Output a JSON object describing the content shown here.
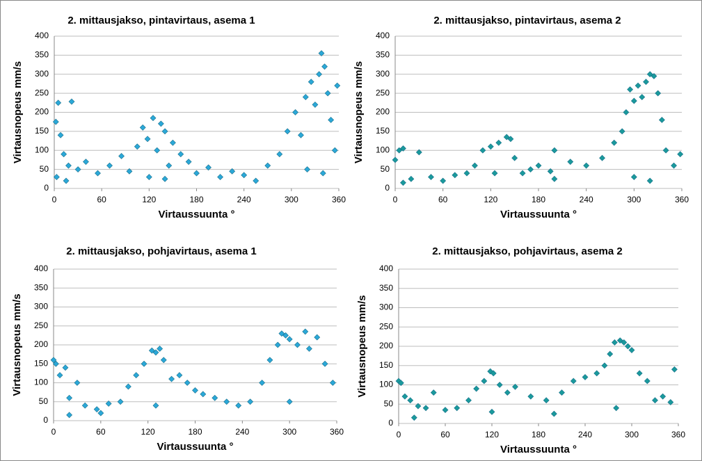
{
  "chart_data": [
    {
      "type": "scatter",
      "title": "2. mittausjakso, pintavirtaus, asema 1",
      "x_label": "Virtaussuunta °",
      "y_label": "Virtausnopeus mm/s",
      "color": "#2ba8d8",
      "x": [
        2,
        5,
        8,
        12,
        18,
        22,
        30,
        40,
        55,
        70,
        85,
        95,
        105,
        112,
        118,
        125,
        130,
        135,
        140,
        145,
        150,
        160,
        170,
        180,
        195,
        210,
        225,
        240,
        255,
        270,
        285,
        295,
        305,
        312,
        318,
        325,
        330,
        335,
        338,
        342,
        346,
        350,
        355,
        358,
        3,
        15,
        120,
        140,
        320,
        340
      ],
      "values": [
        175,
        225,
        140,
        90,
        60,
        228,
        50,
        70,
        40,
        60,
        85,
        45,
        110,
        160,
        130,
        185,
        100,
        170,
        150,
        60,
        120,
        90,
        70,
        40,
        55,
        30,
        45,
        35,
        20,
        60,
        90,
        150,
        200,
        140,
        240,
        280,
        220,
        300,
        355,
        320,
        250,
        180,
        100,
        270,
        30,
        20,
        30,
        25,
        50,
        40
      ],
      "xlim": [
        0,
        360
      ],
      "ylim": [
        0,
        400
      ],
      "xticks": [
        0,
        60,
        120,
        180,
        240,
        300,
        360
      ],
      "yticks": [
        0,
        50,
        100,
        150,
        200,
        250,
        300,
        350,
        400
      ],
      "grid": true
    },
    {
      "type": "scatter",
      "title": "2. mittausjakso, pintavirtaus, asema 2",
      "x_label": "Virtaussuunta °",
      "y_label": "Virtausnopeus mm/s",
      "color": "#1a9a9c",
      "x": [
        0,
        5,
        10,
        20,
        30,
        45,
        60,
        75,
        90,
        100,
        110,
        120,
        130,
        140,
        145,
        150,
        160,
        170,
        180,
        195,
        200,
        220,
        240,
        260,
        275,
        285,
        290,
        295,
        300,
        305,
        310,
        315,
        320,
        325,
        330,
        335,
        340,
        350,
        358,
        125,
        300,
        320,
        10,
        200
      ],
      "values": [
        75,
        100,
        105,
        25,
        95,
        30,
        20,
        35,
        40,
        60,
        100,
        110,
        120,
        135,
        130,
        80,
        40,
        50,
        60,
        45,
        100,
        70,
        60,
        80,
        120,
        150,
        200,
        260,
        230,
        270,
        240,
        280,
        300,
        295,
        250,
        180,
        100,
        60,
        90,
        40,
        30,
        20,
        15,
        25
      ],
      "xlim": [
        0,
        360
      ],
      "ylim": [
        0,
        400
      ],
      "xticks": [
        0,
        60,
        120,
        180,
        240,
        300,
        360
      ],
      "yticks": [
        0,
        50,
        100,
        150,
        200,
        250,
        300,
        350,
        400
      ],
      "grid": true
    },
    {
      "type": "scatter",
      "title": "2. mittausjakso, pohjavirtaus, asema 1",
      "x_label": "Virtaussuunta °",
      "y_label": "Virtausnopeus mm/s",
      "color": "#2ba8d8",
      "x": [
        0,
        3,
        8,
        15,
        20,
        30,
        40,
        55,
        70,
        85,
        95,
        105,
        115,
        125,
        130,
        135,
        140,
        150,
        160,
        170,
        180,
        190,
        205,
        220,
        235,
        250,
        265,
        275,
        285,
        290,
        295,
        300,
        310,
        320,
        325,
        335,
        345,
        355,
        130,
        300,
        60,
        20
      ],
      "values": [
        160,
        150,
        120,
        140,
        60,
        100,
        40,
        30,
        45,
        50,
        90,
        120,
        150,
        185,
        180,
        190,
        160,
        110,
        120,
        100,
        80,
        70,
        60,
        50,
        40,
        50,
        100,
        160,
        200,
        230,
        225,
        215,
        200,
        235,
        190,
        220,
        150,
        100,
        40,
        50,
        20,
        15
      ],
      "xlim": [
        0,
        360
      ],
      "ylim": [
        0,
        400
      ],
      "xticks": [
        0,
        60,
        120,
        180,
        240,
        300,
        360
      ],
      "yticks": [
        0,
        50,
        100,
        150,
        200,
        250,
        300,
        350,
        400
      ],
      "grid": true
    },
    {
      "type": "scatter",
      "title": "2. mittausjakso, pohjavirtaus, asema 2",
      "x_label": "Virtaussuunta °",
      "y_label": "Virtausnopeus mm/s",
      "color": "#1a9a9c",
      "x": [
        0,
        3,
        8,
        15,
        25,
        35,
        45,
        60,
        75,
        90,
        100,
        110,
        118,
        122,
        130,
        140,
        150,
        170,
        190,
        210,
        225,
        240,
        255,
        265,
        272,
        278,
        285,
        290,
        295,
        300,
        310,
        320,
        330,
        340,
        350,
        355,
        280,
        120,
        20,
        200
      ],
      "values": [
        110,
        105,
        70,
        60,
        45,
        40,
        80,
        35,
        40,
        60,
        90,
        110,
        135,
        130,
        100,
        80,
        95,
        70,
        60,
        80,
        110,
        120,
        130,
        150,
        180,
        210,
        215,
        210,
        200,
        190,
        130,
        110,
        60,
        70,
        55,
        140,
        40,
        30,
        15,
        25
      ],
      "xlim": [
        0,
        360
      ],
      "ylim": [
        0,
        400
      ],
      "xticks": [
        0,
        60,
        120,
        180,
        240,
        300,
        360
      ],
      "yticks": [
        0,
        50,
        100,
        150,
        200,
        250,
        300,
        350,
        400
      ],
      "grid": true
    }
  ]
}
